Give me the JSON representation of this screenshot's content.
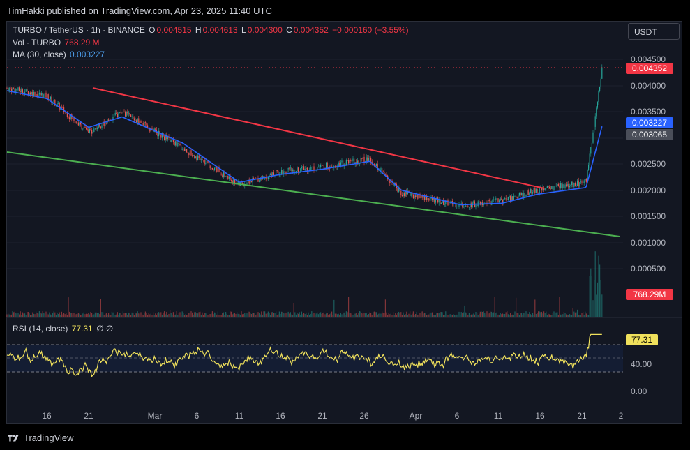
{
  "header": {
    "published": "TimHakki published on TradingView.com, Apr 23, 2025 11:40 UTC"
  },
  "legend": {
    "symbol": "TURBO / TetherUS · 1h · BINANCE",
    "o_label": "O",
    "o_value": "0.004515",
    "h_label": "H",
    "h_value": "0.004613",
    "l_label": "L",
    "l_value": "0.004300",
    "c_label": "C",
    "c_value": "0.004352",
    "change": "−0.000160 (−3.55%)",
    "vol_label": "Vol · TURBO",
    "vol_value": "768.29 M",
    "ma_label": "MA (30, close)",
    "ma_value": "0.003227",
    "rsi_label": "RSI (14, close)",
    "rsi_value": "77.31",
    "rsi_extra": "∅  ∅"
  },
  "currency_button": "USDT",
  "price_axis": [
    "0.004500",
    "0.004000",
    "0.003500",
    "0.002500",
    "0.002000",
    "0.001500",
    "0.001000",
    "0.000500"
  ],
  "price_tags": {
    "last": "0.004352",
    "ma": "0.003227",
    "other": "0.003065",
    "volume": "768.29M"
  },
  "rsi_axis": [
    "40.00",
    "0.00"
  ],
  "rsi_tag": "77.31",
  "time_axis": [
    "16",
    "21",
    "Mar",
    "6",
    "11",
    "16",
    "21",
    "26",
    "Apr",
    "6",
    "11",
    "16",
    "21",
    "2"
  ],
  "footer": {
    "brand": "TradingView"
  },
  "colors": {
    "background": "#131722",
    "up": "#26a69a",
    "down": "#ef5350",
    "ma": "#2962ff",
    "resistance": "#f23645",
    "support": "#4caf50",
    "rsi": "#f0e15c",
    "last_price": "#f23645"
  },
  "chart_data": {
    "type": "line",
    "title": "TURBO / TetherUS · 1h · BINANCE",
    "ylim": [
      0.0,
      0.0047
    ],
    "x": [
      "Feb 12",
      "Feb 16",
      "Feb 21",
      "Mar 1",
      "Mar 6",
      "Mar 11",
      "Mar 16",
      "Mar 21",
      "Mar 26",
      "Apr 1",
      "Apr 6",
      "Apr 11",
      "Apr 16",
      "Apr 21",
      "Apr 23"
    ],
    "series": [
      {
        "name": "TURBO",
        "values": [
          0.00395,
          0.0038,
          0.0031,
          0.0035,
          0.0028,
          0.0021,
          0.00235,
          0.00245,
          0.0026,
          0.00195,
          0.0017,
          0.0018,
          0.002,
          0.00215,
          0.004352
        ]
      },
      {
        "name": "MA (30, close)",
        "values": [
          0.0039,
          0.00375,
          0.0032,
          0.0034,
          0.0029,
          0.00215,
          0.0023,
          0.0024,
          0.00255,
          0.002,
          0.00172,
          0.00175,
          0.00192,
          0.00205,
          0.003227
        ]
      }
    ],
    "trendlines": [
      {
        "name": "resistance",
        "from": [
          "Feb 21",
          0.00393
        ],
        "to": [
          "Apr 16",
          0.00201
        ]
      },
      {
        "name": "support",
        "from": [
          "Feb 12",
          0.0027
        ],
        "to": [
          "Apr 25",
          0.00112
        ]
      }
    ],
    "rsi": {
      "last": 77.31,
      "bands": [
        70,
        50,
        30
      ]
    }
  }
}
